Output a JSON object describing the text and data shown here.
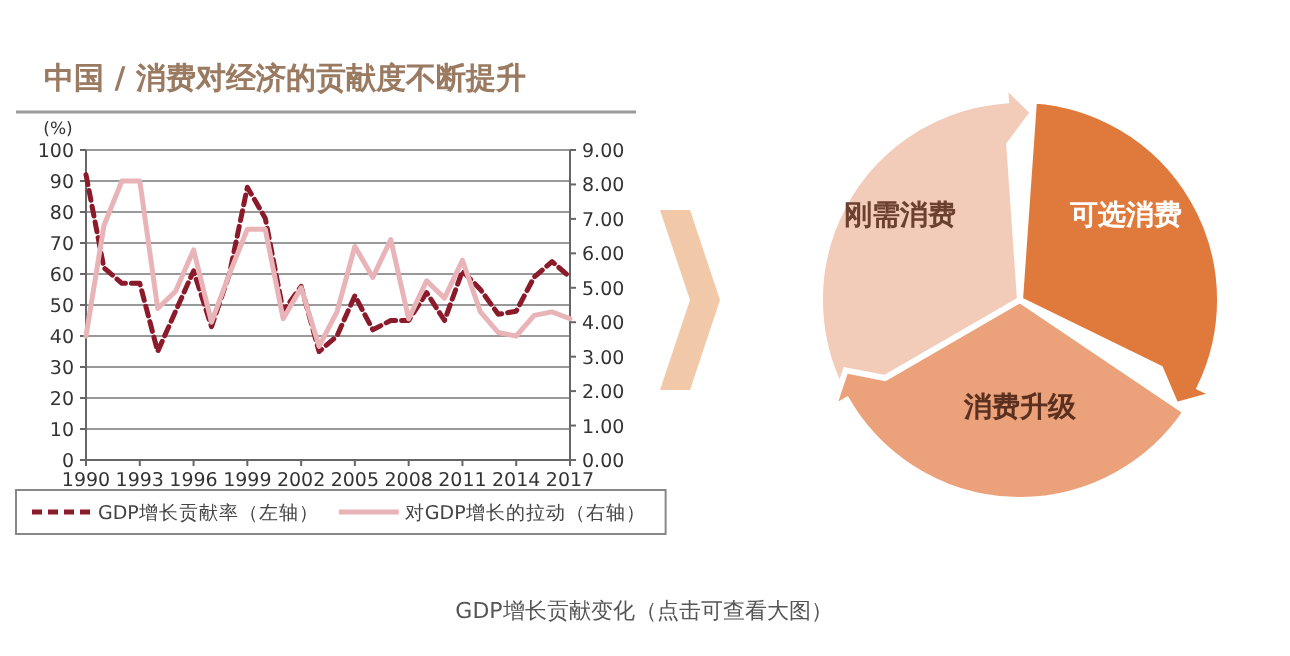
{
  "chart_data": [
    {
      "type": "line",
      "title": "中国 / 消费对经济的贡献度不断提升",
      "ylabel": "(%)",
      "x": [
        1990,
        1991,
        1992,
        1993,
        1994,
        1995,
        1996,
        1997,
        1998,
        1999,
        2000,
        2001,
        2002,
        2003,
        2004,
        2005,
        2006,
        2007,
        2008,
        2009,
        2010,
        2011,
        2012,
        2013,
        2014,
        2015,
        2016,
        2017
      ],
      "series": [
        {
          "name": "GDP增长贡献率（左轴）",
          "color": "#8b1a2b",
          "line_style": "dashed",
          "values": [
            92,
            62,
            57,
            57,
            35,
            48,
            61,
            43,
            60,
            88,
            78,
            48,
            56,
            35,
            40,
            53,
            42,
            45,
            45,
            54,
            45,
            61,
            55,
            47,
            48,
            59,
            64,
            59
          ]
        },
        {
          "name": "对GDP增长的拉动（右轴）",
          "color": "#e8b4b8",
          "line_style": "solid",
          "axis": "y2",
          "values": [
            3.6,
            6.8,
            8.1,
            8.1,
            4.4,
            4.9,
            6.1,
            4.0,
            5.4,
            6.7,
            6.7,
            4.1,
            5.0,
            3.3,
            4.3,
            6.2,
            5.3,
            6.4,
            4.1,
            5.2,
            4.7,
            5.8,
            4.3,
            3.7,
            3.6,
            4.2,
            4.3,
            4.1
          ]
        }
      ],
      "xlim": [
        1990,
        2017
      ],
      "xticks": [
        1990,
        1993,
        1996,
        1999,
        2002,
        2005,
        2008,
        2011,
        2014,
        2017
      ],
      "ylim": [
        0,
        100
      ],
      "yticks": [
        0,
        10,
        20,
        30,
        40,
        50,
        60,
        70,
        80,
        90,
        100
      ],
      "y2lim": [
        0,
        9
      ],
      "y2ticks": [
        {
          "value": 0,
          "label": "0.00"
        },
        {
          "value": 1,
          "label": "1.00"
        },
        {
          "value": 2,
          "label": "2.00"
        },
        {
          "value": 3,
          "label": "3.00"
        },
        {
          "value": 4,
          "label": "4.00"
        },
        {
          "value": 5,
          "label": "5.00"
        },
        {
          "value": 6,
          "label": "6.00"
        },
        {
          "value": 7,
          "label": "7.00"
        },
        {
          "value": 8,
          "label": "8.00"
        },
        {
          "value": 9,
          "label": "9.00"
        }
      ],
      "grid": "y",
      "legend": "bottom",
      "marker": "none",
      "annotations": [
        "GDP增长贡献变化（点击可查看大图）"
      ]
    },
    {
      "type": "other",
      "annotations": [
        "刚需消费",
        "可选消费",
        "消费升级"
      ]
    }
  ]
}
